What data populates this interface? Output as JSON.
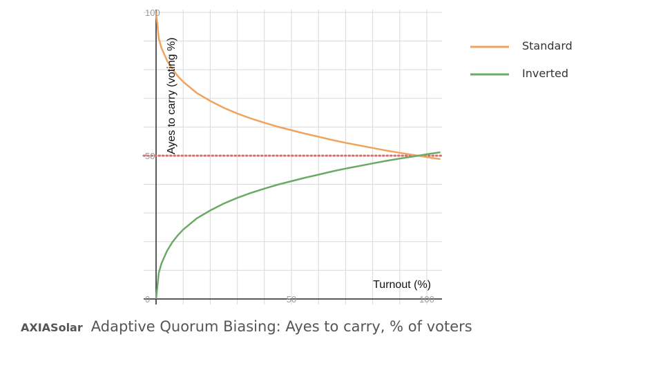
{
  "chart_data": {
    "type": "line",
    "xlabel": "Turnout (%)",
    "ylabel": "Ayes to carry (voting %)",
    "xlim": [
      0,
      105
    ],
    "ylim": [
      0,
      100
    ],
    "x_ticks": [
      0,
      50,
      100
    ],
    "x_tick_labels": [
      "",
      "50",
      "100"
    ],
    "y_ticks": [
      0,
      50,
      100
    ],
    "y_tick_labels": [
      "0",
      "50",
      "100"
    ],
    "grid": true,
    "legend_position": "top-right",
    "reference_line": {
      "y": 50,
      "style": "dotted",
      "color": "#d86b6b"
    },
    "series": [
      {
        "name": "Standard",
        "color": "#f0a35e",
        "points": [
          [
            0,
            100
          ],
          [
            1,
            90.9
          ],
          [
            2,
            87.6
          ],
          [
            4,
            83.3
          ],
          [
            6,
            80.2
          ],
          [
            8,
            77.8
          ],
          [
            10,
            75.8
          ],
          [
            15,
            71.9
          ],
          [
            20,
            69.1
          ],
          [
            25,
            66.7
          ],
          [
            30,
            64.7
          ],
          [
            35,
            63
          ],
          [
            40,
            61.5
          ],
          [
            45,
            60.1
          ],
          [
            50,
            58.9
          ],
          [
            55,
            57.7
          ],
          [
            60,
            56.6
          ],
          [
            65,
            55.5
          ],
          [
            70,
            54.5
          ],
          [
            75,
            53.6
          ],
          [
            80,
            52.7
          ],
          [
            85,
            51.8
          ],
          [
            90,
            51
          ],
          [
            95,
            50.3
          ],
          [
            100,
            49.5
          ],
          [
            105,
            48.8
          ]
        ]
      },
      {
        "name": "Inverted",
        "color": "#6aaa64",
        "points": [
          [
            0,
            0
          ],
          [
            1,
            9.1
          ],
          [
            2,
            12.4
          ],
          [
            4,
            16.7
          ],
          [
            6,
            19.8
          ],
          [
            8,
            22.2
          ],
          [
            10,
            24.2
          ],
          [
            15,
            28.1
          ],
          [
            20,
            30.9
          ],
          [
            25,
            33.3
          ],
          [
            30,
            35.3
          ],
          [
            35,
            37
          ],
          [
            40,
            38.5
          ],
          [
            45,
            39.9
          ],
          [
            50,
            41.1
          ],
          [
            55,
            42.3
          ],
          [
            60,
            43.4
          ],
          [
            65,
            44.5
          ],
          [
            70,
            45.5
          ],
          [
            75,
            46.4
          ],
          [
            80,
            47.3
          ],
          [
            85,
            48.2
          ],
          [
            90,
            49
          ],
          [
            95,
            49.7
          ],
          [
            100,
            50.5
          ],
          [
            105,
            51.2
          ]
        ]
      }
    ]
  },
  "footer": {
    "brand": "AXIASolar",
    "title": "Adaptive Quorum Biasing: Ayes to carry, % of voters"
  }
}
